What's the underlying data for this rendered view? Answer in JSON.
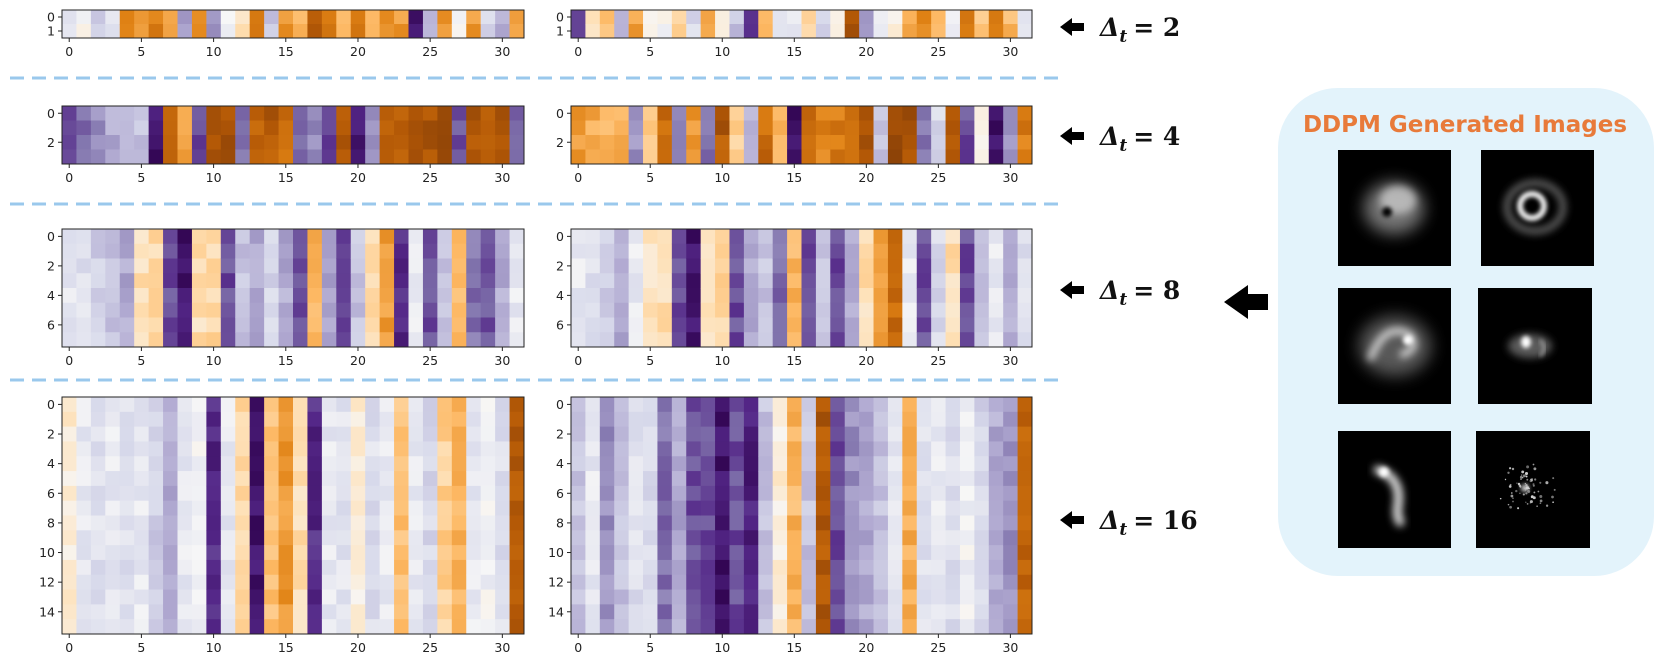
{
  "figure": {
    "right_panel": {
      "title": "DDPM Generated Images",
      "background_color": "#e3f3fb",
      "images": [
        {
          "kind": "diffuse-blob-with-hole"
        },
        {
          "kind": "ring"
        },
        {
          "kind": "swirl-ring"
        },
        {
          "kind": "compact-spot-with-arc"
        },
        {
          "kind": "crescent"
        },
        {
          "kind": "speckle"
        }
      ]
    },
    "arrow_icon": "left-arrow-icon",
    "divider_color": "#9ac8ec",
    "colormap": "PuOr",
    "colormap_colors": [
      "#2d004b",
      "#542788",
      "#8073ac",
      "#b2abd2",
      "#d8daeb",
      "#f7f7f7",
      "#fee0b6",
      "#fdb863",
      "#e08214",
      "#b35806",
      "#7f3b08"
    ]
  },
  "chart_data": [
    {
      "type": "heatmap",
      "label": {
        "prefix": "Δ",
        "subscript": "t",
        "suffix": "= 2"
      },
      "rows": 2,
      "cols": 32,
      "x_ticks": [
        0,
        5,
        10,
        15,
        20,
        25,
        30
      ],
      "y_ticks": [
        0,
        1
      ],
      "left_map": {
        "column_base": [
          0.45,
          0.5,
          0.35,
          0.45,
          0.8,
          0.75,
          0.8,
          0.7,
          0.3,
          0.8,
          0.25,
          0.5,
          0.6,
          0.8,
          0.35,
          0.75,
          0.72,
          0.9,
          0.8,
          0.72,
          0.8,
          0.72,
          0.75,
          0.75,
          0.05,
          0.3,
          0.75,
          0.5,
          0.75,
          0.4,
          0.3,
          0.75
        ]
      },
      "right_map": {
        "column_base": [
          0.15,
          0.6,
          0.7,
          0.3,
          0.75,
          0.5,
          0.5,
          0.65,
          0.4,
          0.72,
          0.5,
          0.35,
          0.1,
          0.7,
          0.4,
          0.45,
          0.65,
          0.4,
          0.5,
          0.9,
          0.25,
          0.45,
          0.55,
          0.75,
          0.8,
          0.7,
          0.45,
          0.8,
          0.65,
          0.8,
          0.7,
          0.45
        ]
      }
    },
    {
      "type": "heatmap",
      "label": {
        "prefix": "Δ",
        "subscript": "t",
        "suffix": "= 4"
      },
      "rows": 4,
      "cols": 32,
      "x_ticks": [
        0,
        5,
        10,
        15,
        20,
        25,
        30
      ],
      "y_ticks": [
        0,
        2
      ],
      "left_map": {
        "column_base": [
          0.15,
          0.2,
          0.25,
          0.3,
          0.3,
          0.35,
          0.05,
          0.9,
          0.75,
          0.15,
          0.92,
          0.92,
          0.2,
          0.88,
          0.9,
          0.85,
          0.2,
          0.25,
          0.15,
          0.9,
          0.08,
          0.25,
          0.88,
          0.88,
          0.92,
          0.92,
          0.92,
          0.15,
          0.9,
          0.9,
          0.92,
          0.2
        ]
      },
      "right_map": {
        "column_base": [
          0.75,
          0.72,
          0.7,
          0.72,
          0.25,
          0.65,
          0.85,
          0.25,
          0.75,
          0.2,
          0.9,
          0.65,
          0.3,
          0.85,
          0.72,
          0.05,
          0.85,
          0.8,
          0.82,
          0.85,
          0.9,
          0.35,
          0.95,
          0.92,
          0.2,
          0.4,
          0.9,
          0.15,
          0.55,
          0.05,
          0.25,
          0.82
        ]
      }
    },
    {
      "type": "heatmap",
      "label": {
        "prefix": "Δ",
        "subscript": "t",
        "suffix": "= 8"
      },
      "rows": 8,
      "cols": 32,
      "x_ticks": [
        0,
        5,
        10,
        15,
        20,
        25,
        30
      ],
      "y_ticks": [
        0,
        2,
        4,
        6
      ],
      "left_map": {
        "column_base": [
          0.45,
          0.42,
          0.38,
          0.35,
          0.3,
          0.6,
          0.62,
          0.15,
          0.05,
          0.6,
          0.62,
          0.15,
          0.35,
          0.3,
          0.4,
          0.3,
          0.15,
          0.7,
          0.3,
          0.15,
          0.35,
          0.6,
          0.75,
          0.1,
          0.45,
          0.15,
          0.35,
          0.7,
          0.2,
          0.15,
          0.3,
          0.45
        ]
      },
      "right_map": {
        "column_base": [
          0.45,
          0.42,
          0.38,
          0.3,
          0.45,
          0.58,
          0.6,
          0.15,
          0.05,
          0.6,
          0.62,
          0.15,
          0.3,
          0.35,
          0.2,
          0.7,
          0.15,
          0.35,
          0.15,
          0.3,
          0.6,
          0.75,
          0.85,
          0.45,
          0.15,
          0.4,
          0.6,
          0.15,
          0.35,
          0.45,
          0.3,
          0.42
        ]
      }
    },
    {
      "type": "heatmap",
      "label": {
        "prefix": "Δ",
        "subscript": "t",
        "suffix": "= 16"
      },
      "rows": 16,
      "cols": 32,
      "x_ticks": [
        0,
        5,
        10,
        15,
        20,
        25,
        30
      ],
      "y_ticks": [
        0,
        2,
        4,
        6,
        8,
        10,
        12,
        14
      ],
      "left_map": {
        "column_base": [
          0.55,
          0.45,
          0.42,
          0.45,
          0.42,
          0.45,
          0.38,
          0.3,
          0.45,
          0.48,
          0.1,
          0.45,
          0.62,
          0.05,
          0.68,
          0.76,
          0.6,
          0.1,
          0.45,
          0.43,
          0.55,
          0.42,
          0.45,
          0.67,
          0.45,
          0.4,
          0.64,
          0.71,
          0.45,
          0.48,
          0.42,
          0.9
        ]
      },
      "right_map": {
        "column_base": [
          0.35,
          0.45,
          0.25,
          0.35,
          0.42,
          0.4,
          0.2,
          0.3,
          0.15,
          0.15,
          0.05,
          0.15,
          0.08,
          0.35,
          0.55,
          0.7,
          0.35,
          0.9,
          0.15,
          0.25,
          0.3,
          0.35,
          0.45,
          0.72,
          0.42,
          0.45,
          0.42,
          0.48,
          0.4,
          0.3,
          0.25,
          0.88
        ]
      }
    }
  ]
}
